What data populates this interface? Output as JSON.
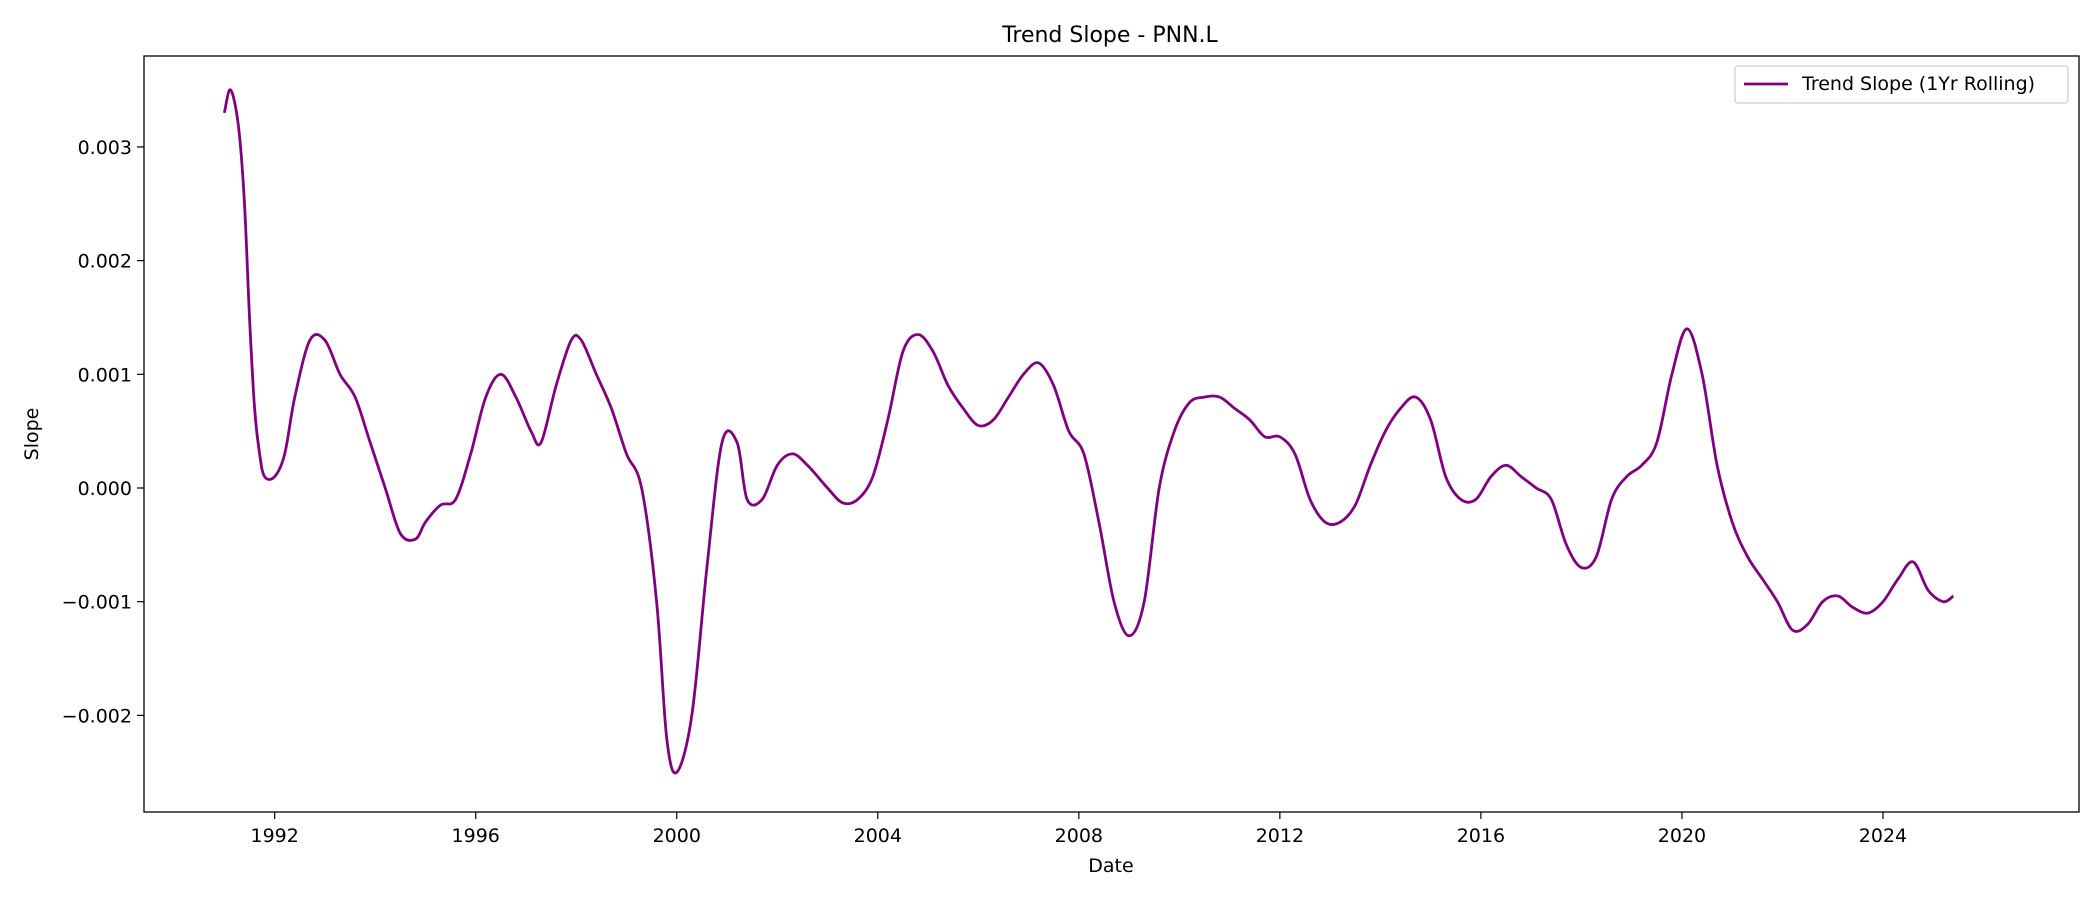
{
  "chart_data": {
    "type": "line",
    "title": "Trend Slope - PNN.L",
    "xlabel": "Date",
    "ylabel": "Slope",
    "xlim": [
      1989.4,
      2027.9
    ],
    "ylim": [
      -0.00285,
      0.0038
    ],
    "x_ticks": [
      1992,
      1996,
      2000,
      2004,
      2008,
      2012,
      2016,
      2020,
      2024
    ],
    "y_ticks": [
      {
        "value": 0.003,
        "label": "0.003"
      },
      {
        "value": 0.002,
        "label": "0.002"
      },
      {
        "value": 0.001,
        "label": "0.001"
      },
      {
        "value": 0.0,
        "label": "0.000"
      },
      {
        "value": -0.001,
        "label": "−0.001"
      },
      {
        "value": -0.002,
        "label": "−0.002"
      }
    ],
    "grid": false,
    "legend": {
      "placement": "top-right",
      "entries": [
        "Trend Slope (1Yr Rolling)"
      ]
    },
    "series": [
      {
        "name": "Trend Slope (1Yr Rolling)",
        "color": "#800080",
        "x": [
          1991.0,
          1991.1,
          1991.2,
          1991.3,
          1991.4,
          1991.5,
          1991.6,
          1991.7,
          1991.8,
          1992.0,
          1992.2,
          1992.4,
          1992.7,
          1993.0,
          1993.3,
          1993.6,
          1993.9,
          1994.2,
          1994.5,
          1994.8,
          1995.0,
          1995.3,
          1995.6,
          1995.9,
          1996.2,
          1996.5,
          1996.8,
          1997.1,
          1997.3,
          1997.6,
          1997.9,
          1998.1,
          1998.4,
          1998.7,
          1999.0,
          1999.3,
          1999.6,
          1999.8,
          2000.0,
          2000.3,
          2000.6,
          2000.9,
          2001.2,
          2001.4,
          2001.7,
          2002.0,
          2002.3,
          2002.6,
          2003.0,
          2003.3,
          2003.6,
          2003.9,
          2004.2,
          2004.5,
          2004.8,
          2005.1,
          2005.4,
          2005.7,
          2006.0,
          2006.3,
          2006.6,
          2006.9,
          2007.2,
          2007.5,
          2007.8,
          2008.1,
          2008.4,
          2008.7,
          2009.0,
          2009.3,
          2009.6,
          2009.9,
          2010.2,
          2010.5,
          2010.8,
          2011.1,
          2011.4,
          2011.7,
          2012.0,
          2012.3,
          2012.6,
          2012.9,
          2013.2,
          2013.5,
          2013.8,
          2014.1,
          2014.4,
          2014.7,
          2015.0,
          2015.3,
          2015.6,
          2015.9,
          2016.2,
          2016.5,
          2016.8,
          2017.1,
          2017.4,
          2017.7,
          2018.0,
          2018.3,
          2018.6,
          2018.9,
          2019.2,
          2019.5,
          2019.8,
          2020.1,
          2020.4,
          2020.7,
          2021.0,
          2021.3,
          2021.6,
          2021.9,
          2022.2,
          2022.5,
          2022.8,
          2023.1,
          2023.4,
          2023.7,
          2024.0,
          2024.3,
          2024.6,
          2024.9,
          2025.2,
          2025.4
        ],
        "y": [
          0.0033,
          0.0035,
          0.0034,
          0.0031,
          0.0025,
          0.0015,
          0.0007,
          0.0003,
          0.0001,
          0.0001,
          0.0003,
          0.0008,
          0.0013,
          0.0013,
          0.001,
          0.0008,
          0.0004,
          0.0,
          -0.0004,
          -0.00045,
          -0.0003,
          -0.00015,
          -0.0001,
          0.0003,
          0.0008,
          0.001,
          0.0008,
          0.0005,
          0.0004,
          0.0009,
          0.0013,
          0.0013,
          0.001,
          0.0007,
          0.0003,
          0.0,
          -0.001,
          -0.0022,
          -0.0025,
          -0.002,
          -0.0007,
          0.0004,
          0.0004,
          -0.0001,
          -0.0001,
          0.0002,
          0.0003,
          0.0002,
          0.0,
          -0.00013,
          -0.0001,
          0.0001,
          0.0006,
          0.0012,
          0.00135,
          0.0012,
          0.0009,
          0.0007,
          0.00055,
          0.0006,
          0.0008,
          0.001,
          0.0011,
          0.0009,
          0.0005,
          0.0003,
          -0.0003,
          -0.001,
          -0.0013,
          -0.001,
          0.0,
          0.0005,
          0.00075,
          0.0008,
          0.0008,
          0.0007,
          0.0006,
          0.00045,
          0.00045,
          0.0003,
          -0.0001,
          -0.0003,
          -0.0003,
          -0.00015,
          0.0002,
          0.0005,
          0.0007,
          0.0008,
          0.0006,
          0.0001,
          -0.0001,
          -0.0001,
          0.0001,
          0.0002,
          0.0001,
          0.0,
          -0.0001,
          -0.0005,
          -0.0007,
          -0.0006,
          -0.0001,
          0.0001,
          0.0002,
          0.0004,
          0.001,
          0.0014,
          0.001,
          0.0002,
          -0.0003,
          -0.0006,
          -0.0008,
          -0.001,
          -0.00125,
          -0.0012,
          -0.001,
          -0.00095,
          -0.00105,
          -0.0011,
          -0.001,
          -0.0008,
          -0.00065,
          -0.0009,
          -0.001,
          -0.00095
        ]
      }
    ]
  }
}
